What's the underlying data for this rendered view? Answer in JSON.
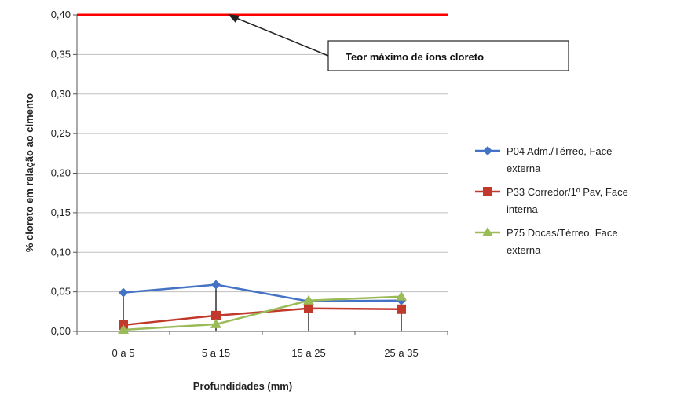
{
  "chart_data": {
    "type": "line",
    "categories": [
      "0 a 5",
      "5 a 15",
      "15 a 25",
      "25 a 35"
    ],
    "ylabel": "% cloreto em relação ao cimento",
    "xlabel": "Profundidades (mm)",
    "ylim": [
      0,
      0.4
    ],
    "yticks": [
      "0,00",
      "0,05",
      "0,10",
      "0,15",
      "0,20",
      "0,25",
      "0,30",
      "0,35",
      "0,40"
    ],
    "grid": true,
    "legend_position": "right",
    "series": [
      {
        "name": "P04 Adm./Térreo, Face externa",
        "legend_lines": [
          "P04 Adm./Térreo, Face",
          "externa"
        ],
        "values": [
          0.049,
          0.059,
          0.038,
          0.039
        ],
        "color": "#4472c4",
        "marker": "diamond"
      },
      {
        "name": "P33 Corredor/1º Pav, Face interna",
        "legend_lines": [
          "P33 Corredor/1º Pav, Face",
          "interna"
        ],
        "values": [
          0.008,
          0.02,
          0.029,
          0.028
        ],
        "color": "#c0392b",
        "marker": "square"
      },
      {
        "name": "P75 Docas/Térreo, Face externa",
        "legend_lines": [
          "P75 Docas/Térreo, Face",
          "externa"
        ],
        "values": [
          0.002,
          0.009,
          0.039,
          0.044
        ],
        "color": "#9bbb59",
        "marker": "triangle"
      }
    ],
    "reference_line": {
      "value": 0.4,
      "color": "#ff0000"
    },
    "annotation": {
      "text": "Teor máximo de íons cloreto"
    }
  }
}
